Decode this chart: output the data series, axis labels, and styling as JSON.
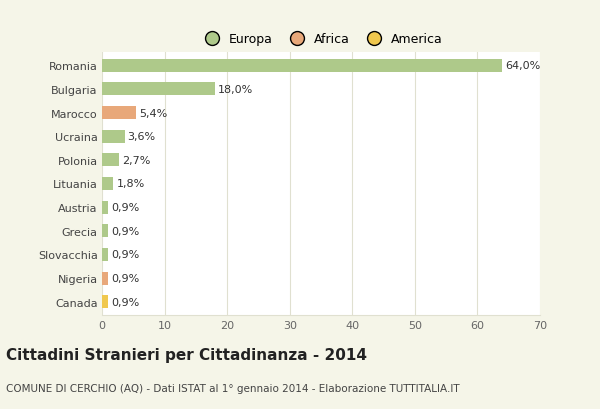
{
  "categories": [
    "Romania",
    "Bulgaria",
    "Marocco",
    "Ucraina",
    "Polonia",
    "Lituania",
    "Austria",
    "Grecia",
    "Slovacchia",
    "Nigeria",
    "Canada"
  ],
  "values": [
    64.0,
    18.0,
    5.4,
    3.6,
    2.7,
    1.8,
    0.9,
    0.9,
    0.9,
    0.9,
    0.9
  ],
  "labels": [
    "64,0%",
    "18,0%",
    "5,4%",
    "3,6%",
    "2,7%",
    "1,8%",
    "0,9%",
    "0,9%",
    "0,9%",
    "0,9%",
    "0,9%"
  ],
  "colors": [
    "#aec98a",
    "#aec98a",
    "#e8a87a",
    "#aec98a",
    "#aec98a",
    "#aec98a",
    "#aec98a",
    "#aec98a",
    "#aec98a",
    "#e8a87a",
    "#f0c84e"
  ],
  "legend_labels": [
    "Europa",
    "Africa",
    "America"
  ],
  "legend_colors": [
    "#aec98a",
    "#e8a87a",
    "#f0c84e"
  ],
  "xlim": [
    0,
    70
  ],
  "xticks": [
    0,
    10,
    20,
    30,
    40,
    50,
    60,
    70
  ],
  "title": "Cittadini Stranieri per Cittadinanza - 2014",
  "subtitle": "COMUNE DI CERCHIO (AQ) - Dati ISTAT al 1° gennaio 2014 - Elaborazione TUTTITALIA.IT",
  "background_color": "#f5f5e8",
  "plot_bg_color": "#ffffff",
  "grid_color": "#e0e0d0",
  "bar_height": 0.55,
  "title_fontsize": 11,
  "subtitle_fontsize": 7.5,
  "label_fontsize": 8,
  "tick_fontsize": 8,
  "legend_fontsize": 9
}
